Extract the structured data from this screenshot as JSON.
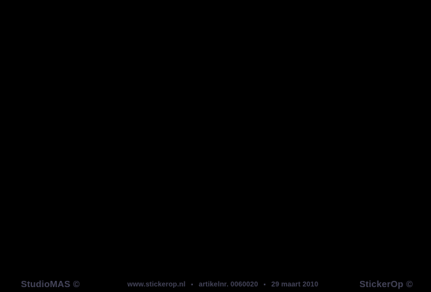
{
  "canvas": {
    "background_color": "#000000",
    "text_color": "#45455a"
  },
  "footer": {
    "left_credit": "StudioMAS ©",
    "center": {
      "website": "www.stickerop.nl",
      "separator": "•",
      "article_number": "artikelnr. 0060020",
      "date": "29 maart 2010"
    },
    "right_credit": "StickerOp ©"
  }
}
